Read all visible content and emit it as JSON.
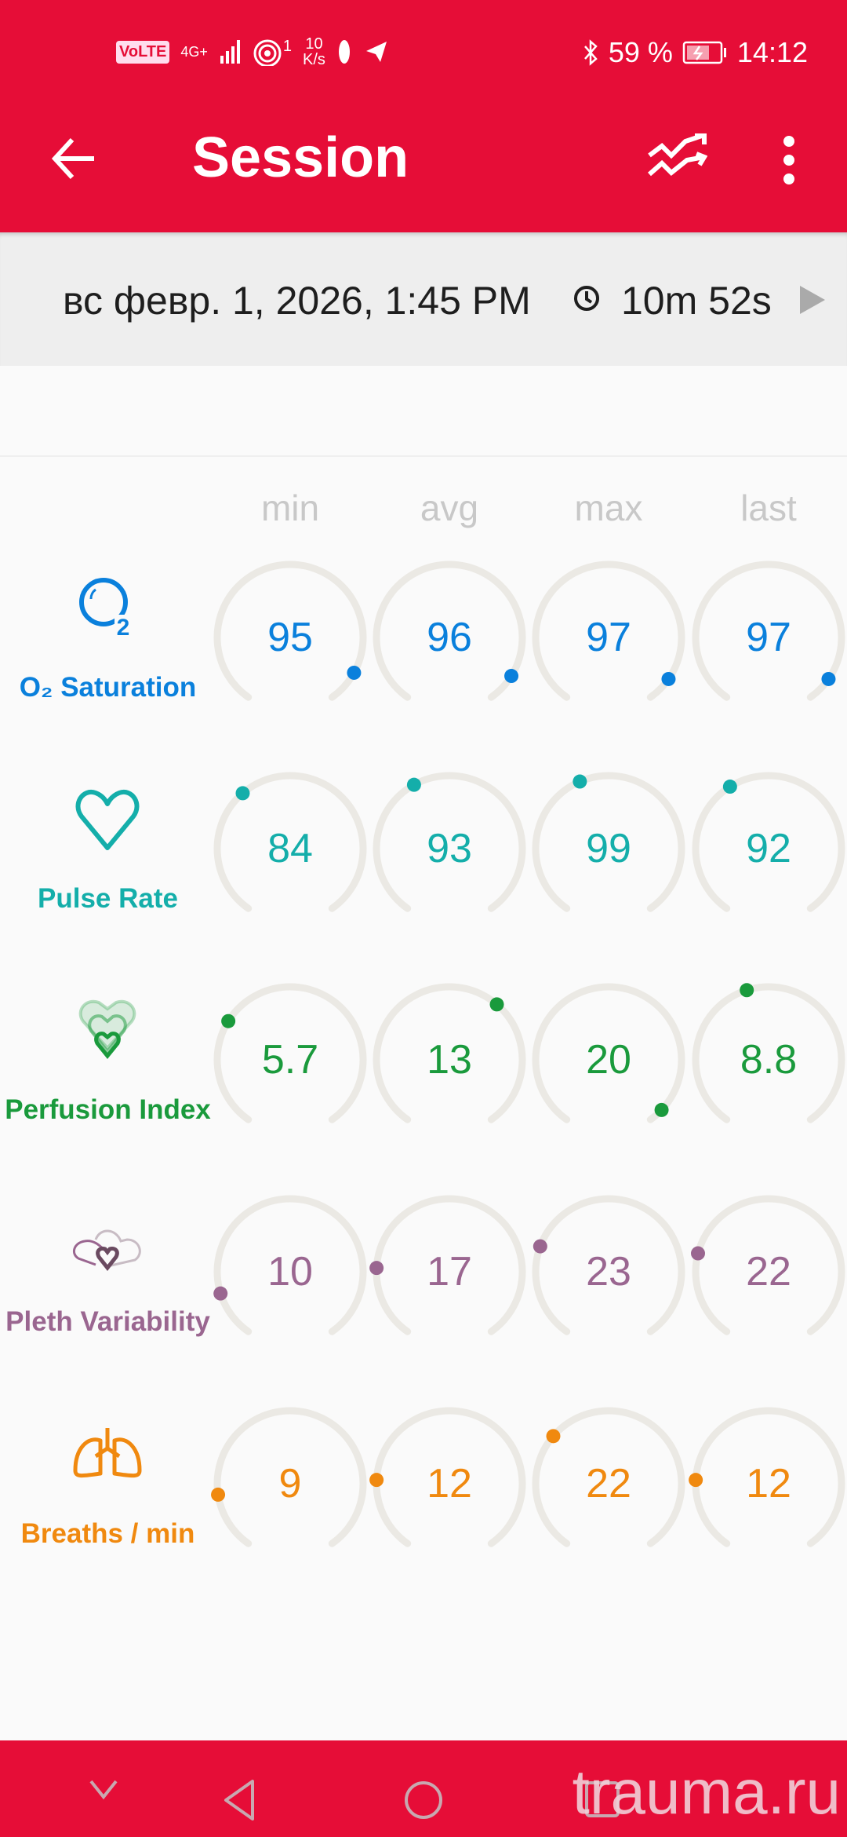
{
  "status_bar": {
    "volte": "VoLTE",
    "network": "4G+",
    "hotspot_count": "1",
    "speed_value": "10",
    "speed_unit": "K/s",
    "battery": "59 %",
    "time": "14:12"
  },
  "header": {
    "title": "Session",
    "back_icon": "arrow-left-icon",
    "trend_icon": "trend-icon",
    "more_icon": "more-vertical-icon"
  },
  "session": {
    "date": "вс февр. 1, 2026, 1:45 PM",
    "duration": "10m 52s"
  },
  "columns": [
    "min",
    "avg",
    "max",
    "last"
  ],
  "colors": {
    "brand": "#e60d37",
    "track": "#ebe9e4"
  },
  "metrics": [
    {
      "label": "O₂ Saturation",
      "icon": "o2-icon",
      "color": "#0a80dc",
      "values": [
        "95",
        "96",
        "97",
        "97"
      ],
      "levels": [
        0.91,
        0.92,
        0.93,
        0.93
      ]
    },
    {
      "label": "Pulse Rate",
      "icon": "heart-icon",
      "color": "#14aeaa",
      "values": [
        "84",
        "93",
        "99",
        "92"
      ],
      "levels": [
        0.36,
        0.4,
        0.42,
        0.39
      ]
    },
    {
      "label": "Perfusion Index",
      "icon": "perfusion-hearts-icon",
      "color": "#1a9a3c",
      "values": [
        "5.7",
        "13",
        "20",
        "8.8"
      ],
      "levels": [
        0.3,
        0.64,
        0.96,
        0.44
      ]
    },
    {
      "label": "Pleth Variability",
      "icon": "pleth-hearts-icon",
      "color": "#9a6690",
      "values": [
        "10",
        "17",
        "23",
        "22"
      ],
      "levels": [
        0.13,
        0.2,
        0.26,
        0.24
      ]
    },
    {
      "label": "Breaths / min",
      "icon": "lungs-icon",
      "color": "#f0890f",
      "values": [
        "9",
        "12",
        "22",
        "12"
      ],
      "levels": [
        0.16,
        0.2,
        0.33,
        0.2
      ]
    }
  ],
  "watermark": "trauma.ru"
}
